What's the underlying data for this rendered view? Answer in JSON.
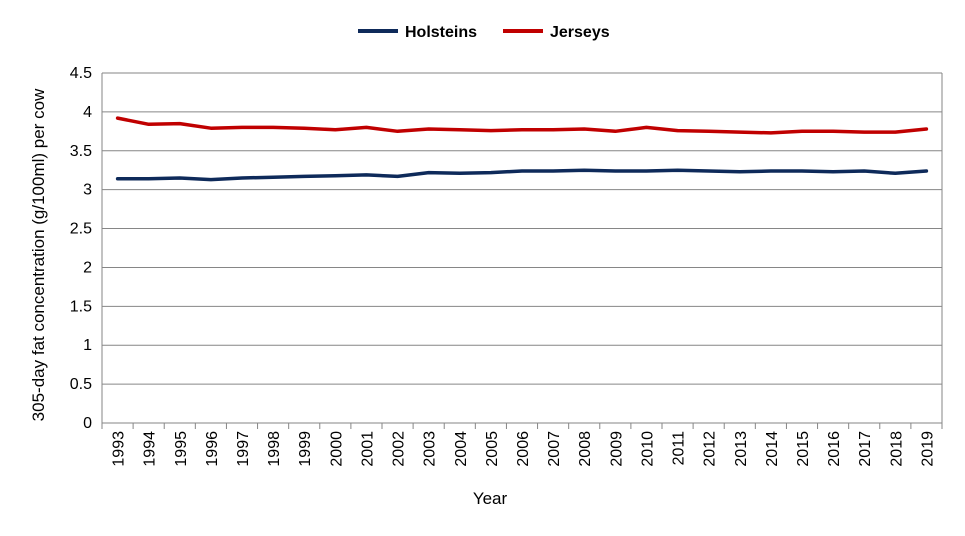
{
  "chart_data": {
    "type": "line",
    "title": "",
    "xlabel": "Year",
    "ylabel": "305-day fat concentration (g/100ml) per cow",
    "ylim": [
      0,
      4.5
    ],
    "yticks": [
      "0",
      "0.5",
      "1",
      "1.5",
      "2",
      "2.5",
      "3",
      "3.5",
      "4",
      "4.5"
    ],
    "grid": true,
    "legend_position": "top-center",
    "categories": [
      "1993",
      "1994",
      "1995",
      "1996",
      "1997",
      "1998",
      "1999",
      "2000",
      "2001",
      "2002",
      "2003",
      "2004",
      "2005",
      "2006",
      "2007",
      "2008",
      "2009",
      "2010",
      "2011",
      "2012",
      "2013",
      "2014",
      "2015",
      "2016",
      "2017",
      "2018",
      "2019"
    ],
    "series": [
      {
        "name": "Holsteins",
        "color": "#0e2a5a",
        "values": [
          3.14,
          3.14,
          3.15,
          3.13,
          3.15,
          3.16,
          3.17,
          3.18,
          3.19,
          3.17,
          3.22,
          3.21,
          3.22,
          3.24,
          3.24,
          3.25,
          3.24,
          3.24,
          3.25,
          3.24,
          3.23,
          3.24,
          3.24,
          3.23,
          3.24,
          3.21,
          3.24
        ]
      },
      {
        "name": "Jerseys",
        "color": "#c00000",
        "values": [
          3.92,
          3.84,
          3.85,
          3.79,
          3.8,
          3.8,
          3.79,
          3.77,
          3.8,
          3.75,
          3.78,
          3.77,
          3.76,
          3.77,
          3.77,
          3.78,
          3.75,
          3.8,
          3.76,
          3.75,
          3.74,
          3.73,
          3.75,
          3.75,
          3.74,
          3.74,
          3.78
        ]
      }
    ]
  }
}
